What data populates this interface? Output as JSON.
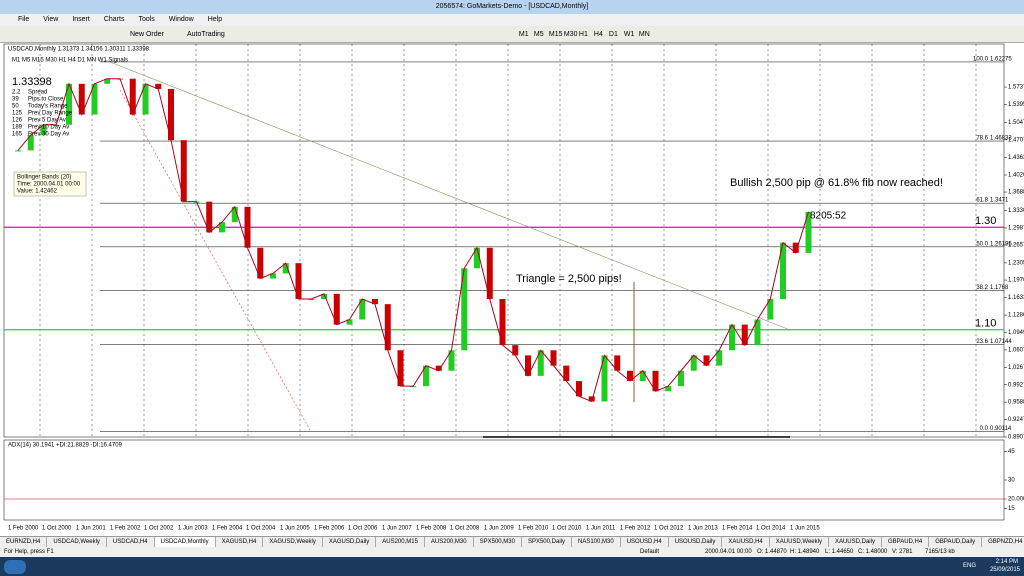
{
  "window": {
    "title": "2056574: GoMarkets-Demo - [USDCAD,Monthly]"
  },
  "menu": [
    "File",
    "View",
    "Insert",
    "Charts",
    "Tools",
    "Window",
    "Help"
  ],
  "toolbar": {
    "new_order": "New Order",
    "autotrading": "AutoTrading",
    "timeframes": [
      "M1",
      "M5",
      "M15",
      "M30",
      "H1",
      "H4",
      "D1",
      "W1",
      "MN"
    ]
  },
  "chart": {
    "symbol_info": "USDCAD,Monthly  1.31373 1.34156 1.30311 1.33398",
    "signals": {
      "header": "M1 M5 M15 M30 H1 H4 D1 MN W1  Signals",
      "price": "1.33398",
      "rows": [
        [
          "2.2",
          "Spread"
        ],
        [
          "39",
          "Pips to Close"
        ],
        [
          "50",
          "Today's Range"
        ],
        [
          "125",
          "Prev Day Range"
        ],
        [
          "126",
          "Prev 5 Day Av"
        ],
        [
          "189",
          "Prev 10 Day Av"
        ],
        [
          "165",
          "Prev 30 Day Av"
        ]
      ]
    },
    "tooltip": [
      "Bollinger Bands (20)",
      "Time: 2000.04.01 00:00",
      "Value: 1.42462"
    ],
    "ylim": [
      0.8907,
      1.6577
    ],
    "yticks": [
      {
        "value": 1.5737,
        "label": "1.57370"
      },
      {
        "value": 1.5395,
        "label": "1.53950"
      },
      {
        "value": 1.5047,
        "label": "1.50470"
      },
      {
        "value": 1.4707,
        "label": "1.47070"
      },
      {
        "value": 1.4363,
        "label": "1.43630"
      },
      {
        "value": 1.402,
        "label": "1.40200"
      },
      {
        "value": 1.3688,
        "label": "1.36880"
      },
      {
        "value": 1.333,
        "label": "1.33300"
      },
      {
        "value": 1.2987,
        "label": "1.29870"
      },
      {
        "value": 1.2657,
        "label": "1.26570"
      },
      {
        "value": 1.2305,
        "label": "1.23050"
      },
      {
        "value": 1.197,
        "label": "1.19700"
      },
      {
        "value": 1.1633,
        "label": "1.16330"
      },
      {
        "value": 1.1286,
        "label": "1.12860"
      },
      {
        "value": 1.0949,
        "label": "1.09490"
      },
      {
        "value": 1.0607,
        "label": "1.06070"
      },
      {
        "value": 1.0267,
        "label": "1.02670"
      },
      {
        "value": 0.9927,
        "label": "0.99270"
      },
      {
        "value": 0.9588,
        "label": "0.95880"
      },
      {
        "value": 0.9247,
        "label": "0.92470"
      },
      {
        "value": 0.8907,
        "label": "0.89070"
      }
    ],
    "fib": [
      {
        "label": "100.0",
        "price": 1.62275
      },
      {
        "label": "78.6",
        "price": 1.46833
      },
      {
        "label": "61.8",
        "price": 1.3471
      },
      {
        "label": "50.0",
        "price": 1.26195
      },
      {
        "label": "38.2",
        "price": 1.1768
      },
      {
        "label": "23.6",
        "price": 1.07144
      },
      {
        "label": "0.0",
        "price": 0.90114
      }
    ],
    "levels": [
      {
        "label": "1.30",
        "price": 1.3,
        "color": "#e000e0"
      },
      {
        "label": "1.10",
        "price": 1.1,
        "color": "#33cc33"
      }
    ],
    "annotations": {
      "bullish": "Bullish 2,500 pip @ 61.8% fib now reached!",
      "triangle": "Triangle = 2,500 pips!",
      "timer": "8205:52"
    },
    "closes": [
      1.45,
      1.48,
      1.5,
      1.5,
      1.58,
      1.52,
      1.58,
      1.59,
      1.59,
      1.52,
      1.58,
      1.57,
      1.47,
      1.35,
      1.35,
      1.29,
      1.31,
      1.34,
      1.26,
      1.2,
      1.21,
      1.23,
      1.16,
      1.16,
      1.17,
      1.11,
      1.12,
      1.16,
      1.15,
      1.06,
      0.99,
      0.99,
      1.03,
      1.02,
      1.06,
      1.22,
      1.26,
      1.16,
      1.07,
      1.05,
      1.01,
      1.06,
      1.03,
      1.0,
      0.97,
      0.96,
      1.05,
      1.02,
      1.0,
      1.02,
      0.98,
      0.99,
      1.02,
      1.05,
      1.03,
      1.06,
      1.11,
      1.07,
      1.12,
      1.16,
      1.27,
      1.25,
      1.33
    ]
  },
  "indicator": {
    "label": "ADX(14) 30.1941 +DI:21.8829 -DI:16.4709",
    "ylim": [
      10,
      50
    ],
    "yticks": [
      45,
      30,
      {
        "value": 20,
        "label": "20.0000"
      },
      15
    ]
  },
  "date_axis": [
    "1 Feb 2000",
    "1 Oct 2000",
    "1 Jun 2001",
    "1 Feb 2002",
    "1 Oct 2002",
    "1 Jun 2003",
    "1 Feb 2004",
    "1 Oct 2004",
    "1 Jun 2005",
    "1 Feb 2006",
    "1 Oct 2006",
    "1 Jun 2007",
    "1 Feb 2008",
    "1 Oct 2008",
    "1 Jun 2009",
    "1 Feb 2010",
    "1 Oct 2010",
    "1 Jun 2011",
    "1 Feb 2012",
    "1 Oct 2012",
    "1 Jun 2013",
    "1 Feb 2014",
    "1 Oct 2014",
    "1 Jun 2015"
  ],
  "tabs": [
    "EURNZD,H4",
    "USDCAD,Weekly",
    "USDCAD,H4",
    "USDCAD,Monthly",
    "XAGUSD,H4",
    "XAGUSD,Weekly",
    "XAGUSD,Daily",
    "AUS200,M15",
    "AUS200,M30",
    "SPX500,M30",
    "SPX500,Daily",
    "NAS100,M30",
    "USOUSD,H4",
    "USOUSD,Daily",
    "XAUUSD,H4",
    "XAUUSD,Weekly",
    "XAUUSD,Daily",
    "GBPAUD,H4",
    "GBPAUD,Daily",
    "GBPNZD,H4",
    "GBPNZD,Daily"
  ],
  "status": [
    "For Help, press F1",
    "Default",
    "2000.04.01 00:00",
    "O: 1.44870",
    "H: 1.48940",
    "L: 1.44650",
    "C: 1.48000",
    "V: 2781",
    "7165/13 kb"
  ],
  "taskbar": {
    "language": "ENG",
    "time": "2:14 PM",
    "date": "25/09/2015"
  }
}
